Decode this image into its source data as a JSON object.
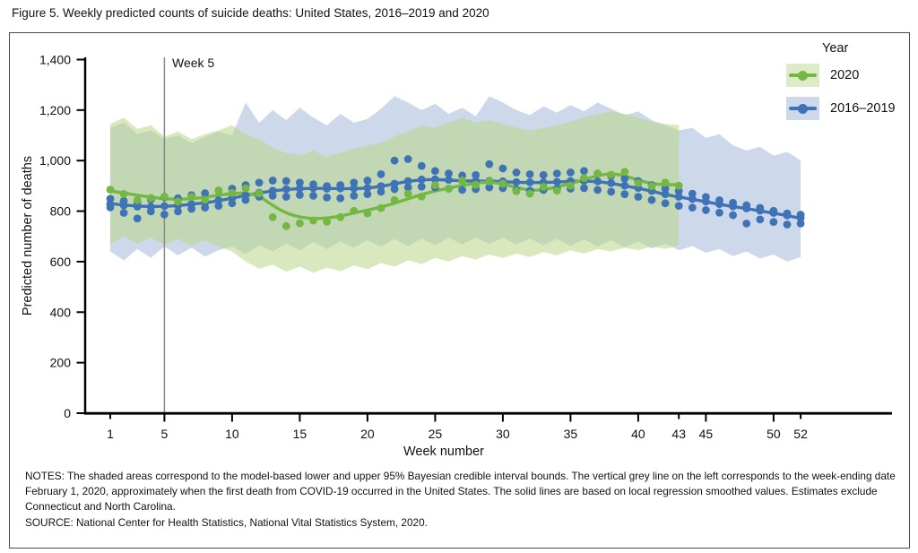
{
  "header": {
    "title": "Figure 5. Weekly predicted counts of suicide deaths: United States, 2016–2019 and 2020"
  },
  "notes": {
    "notes_text": "NOTES: The shaded areas correspond to the model-based lower and upper 95% Bayesian credible interval bounds. The vertical grey line on the left corresponds to the week-ending date February 1, 2020, approximately when the first death from COVID-19 occurred in the United States. The solid lines are based on local regression smoothed values. Estimates exclude Connecticut and North Carolina.",
    "source_text": "SOURCE: National Center for Health Statistics, National Vital Statistics System, 2020."
  },
  "chart_data": {
    "type": "line",
    "title": "Figure 5. Weekly predicted counts of suicide deaths: United States, 2016–2019 and 2020",
    "xlabel": "Week number",
    "ylabel": "Predicted number of deaths",
    "xlim": [
      1,
      52
    ],
    "ylim": [
      0,
      1400
    ],
    "grid": false,
    "annotation": {
      "label": "Week 5",
      "week": 5
    },
    "yticks": [
      {
        "v": 0,
        "label": "0"
      },
      {
        "v": 200,
        "label": "200"
      },
      {
        "v": 400,
        "label": "400"
      },
      {
        "v": 600,
        "label": "600"
      },
      {
        "v": 800,
        "label": "800"
      },
      {
        "v": 1000,
        "label": "1,000"
      },
      {
        "v": 1200,
        "label": "1,200"
      },
      {
        "v": 1400,
        "label": "1,400"
      }
    ],
    "xticks": [
      {
        "w": 1,
        "label": "1",
        "minor": true
      },
      {
        "w": 5,
        "label": "5"
      },
      {
        "w": 10,
        "label": "10"
      },
      {
        "w": 15,
        "label": "15"
      },
      {
        "w": 20,
        "label": "20"
      },
      {
        "w": 25,
        "label": "25"
      },
      {
        "w": 30,
        "label": "30"
      },
      {
        "w": 35,
        "label": "35"
      },
      {
        "w": 40,
        "label": "40"
      },
      {
        "w": 43,
        "label": "43",
        "minor": true
      },
      {
        "w": 45,
        "label": "45"
      },
      {
        "w": 50,
        "label": "50"
      },
      {
        "w": 52,
        "label": "52",
        "minor": true
      }
    ],
    "legend": {
      "title": "Year",
      "position": "top-right",
      "entries": [
        {
          "label": "2020",
          "line_color": "#74b843",
          "swatch_bg": "#ddecc7"
        },
        {
          "label": "2016–2019",
          "line_color": "#3f73b6",
          "swatch_bg": "#cdd9ea"
        }
      ]
    },
    "colors": {
      "grey_line": "#8a8a8a",
      "axis": "#000000"
    },
    "series": [
      {
        "name": "2020",
        "color": "#74b843",
        "band_fill": "#b9d687",
        "band_opacity": 0.55,
        "week_start": 1,
        "line": [
          880,
          872,
          863,
          855,
          849,
          847,
          849,
          855,
          863,
          870,
          872,
          860,
          822,
          792,
          776,
          770,
          772,
          780,
          793,
          804,
          816,
          831,
          849,
          866,
          880,
          891,
          902,
          911,
          915,
          908,
          894,
          882,
          884,
          896,
          909,
          925,
          941,
          949,
          941,
          922,
          909,
          904,
          905
        ],
        "dots": [
          [
            885
          ],
          [
            868
          ],
          [
            843
          ],
          [
            852
          ],
          [
            858
          ],
          [
            838
          ],
          [
            856
          ],
          [
            845
          ],
          [
            882
          ],
          [
            872
          ],
          [
            890
          ],
          [
            870
          ],
          [
            776
          ],
          [
            741
          ],
          [
            752
          ],
          [
            763
          ],
          [
            758
          ],
          [
            776
          ],
          [
            801
          ],
          [
            791
          ],
          [
            812
          ],
          [
            844
          ],
          [
            869
          ],
          [
            858
          ],
          [
            903
          ],
          [
            889
          ],
          [
            921
          ],
          [
            904
          ],
          [
            918
          ],
          [
            909
          ],
          [
            879
          ],
          [
            869
          ],
          [
            896
          ],
          [
            881
          ],
          [
            901
          ],
          [
            931
          ],
          [
            949
          ],
          [
            944
          ],
          [
            956
          ],
          [
            911
          ],
          [
            899
          ],
          [
            913
          ],
          [
            901
          ]
        ],
        "band_upper": [
          1145,
          1170,
          1125,
          1140,
          1095,
          1115,
          1085,
          1105,
          1120,
          1140,
          1105,
          1085,
          1050,
          1030,
          1020,
          1040,
          1015,
          1032,
          1048,
          1060,
          1072,
          1095,
          1115,
          1140,
          1130,
          1150,
          1170,
          1150,
          1160,
          1145,
          1130,
          1120,
          1130,
          1140,
          1155,
          1170,
          1185,
          1195,
          1185,
          1170,
          1155,
          1145,
          1140
        ],
        "band_lower": [
          668,
          700,
          672,
          695,
          668,
          690,
          662,
          685,
          660,
          640,
          600,
          572,
          588,
          560,
          580,
          556,
          576,
          562,
          585,
          570,
          595,
          580,
          605,
          590,
          615,
          600,
          622,
          608,
          628,
          615,
          632,
          618,
          638,
          625,
          645,
          632,
          650,
          640,
          655,
          645,
          660,
          650,
          665
        ]
      },
      {
        "name": "2016–2019",
        "color": "#3f73b6",
        "band_fill": "#cdd9ea",
        "band_opacity": 1,
        "week_start": 1,
        "line": [
          830,
          824,
          820,
          818,
          819,
          822,
          827,
          833,
          841,
          851,
          862,
          872,
          880,
          886,
          889,
          890,
          890,
          889,
          889,
          891,
          898,
          908,
          918,
          924,
          925,
          923,
          920,
          919,
          919,
          917,
          914,
          913,
          913,
          915,
          918,
          919,
          917,
          910,
          900,
          891,
          879,
          866,
          856,
          847,
          837,
          827,
          818,
          810,
          801,
          792,
          782,
          772
        ],
        "dots": [
          [
            849,
            828,
            815
          ],
          [
            840,
            823,
            793
          ],
          [
            833,
            818,
            771
          ],
          [
            846,
            817,
            799
          ],
          [
            855,
            820,
            787
          ],
          [
            851,
            823,
            799
          ],
          [
            863,
            828,
            809
          ],
          [
            871,
            834,
            814
          ],
          [
            881,
            843,
            821
          ],
          [
            889,
            852,
            831
          ],
          [
            903,
            863,
            844
          ],
          [
            913,
            873,
            857
          ],
          [
            921,
            881,
            861
          ],
          [
            919,
            887,
            857
          ],
          [
            913,
            890,
            864
          ],
          [
            906,
            891,
            861
          ],
          [
            899,
            889,
            854
          ],
          [
            903,
            890,
            851
          ],
          [
            913,
            890,
            861
          ],
          [
            921,
            892,
            867
          ],
          [
            946,
            899,
            877
          ],
          [
            1000,
            909,
            887
          ],
          [
            1006,
            919,
            894
          ],
          [
            979,
            925,
            897
          ],
          [
            959,
            926,
            894
          ],
          [
            949,
            924,
            889
          ],
          [
            941,
            921,
            884
          ],
          [
            943,
            920,
            887
          ],
          [
            986,
            920,
            894
          ],
          [
            969,
            918,
            891
          ],
          [
            953,
            915,
            884
          ],
          [
            946,
            914,
            881
          ],
          [
            943,
            914,
            884
          ],
          [
            949,
            916,
            887
          ],
          [
            953,
            919,
            889
          ],
          [
            959,
            920,
            891
          ],
          [
            949,
            918,
            884
          ],
          [
            939,
            911,
            877
          ],
          [
            929,
            901,
            867
          ],
          [
            919,
            892,
            857
          ],
          [
            903,
            880,
            844
          ],
          [
            889,
            867,
            831
          ],
          [
            879,
            857,
            821
          ],
          [
            869,
            848,
            814
          ],
          [
            856,
            838,
            804
          ],
          [
            843,
            828,
            794
          ],
          [
            833,
            819,
            784
          ],
          [
            823,
            811,
            751
          ],
          [
            813,
            802,
            767
          ],
          [
            801,
            793,
            757
          ],
          [
            791,
            783,
            747
          ],
          [
            786,
            773,
            751
          ]
        ],
        "band_upper": [
          1130,
          1150,
          1105,
          1120,
          1085,
          1100,
          1070,
          1095,
          1115,
          1100,
          1230,
          1150,
          1200,
          1160,
          1210,
          1170,
          1140,
          1185,
          1150,
          1165,
          1205,
          1255,
          1230,
          1200,
          1225,
          1185,
          1210,
          1175,
          1255,
          1230,
          1200,
          1180,
          1215,
          1190,
          1220,
          1195,
          1230,
          1205,
          1180,
          1195,
          1160,
          1140,
          1120,
          1130,
          1090,
          1105,
          1060,
          1040,
          1055,
          1020,
          1035,
          1000
        ],
        "band_lower": [
          640,
          605,
          650,
          615,
          660,
          625,
          655,
          620,
          645,
          660,
          630,
          665,
          640,
          672,
          645,
          678,
          650,
          680,
          655,
          685,
          660,
          690,
          662,
          692,
          665,
          695,
          668,
          695,
          670,
          695,
          668,
          692,
          665,
          690,
          662,
          688,
          660,
          685,
          658,
          680,
          652,
          672,
          645,
          662,
          635,
          650,
          622,
          640,
          612,
          628,
          600,
          618
        ]
      }
    ]
  }
}
